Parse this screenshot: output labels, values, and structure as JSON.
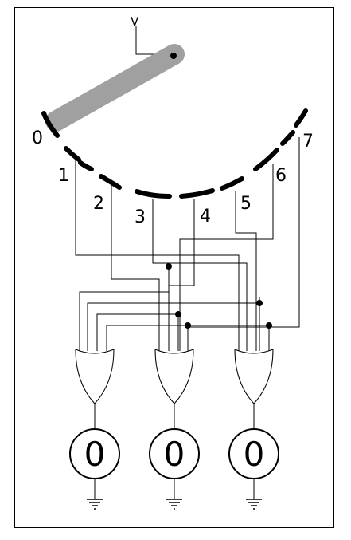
{
  "wiper_supply_label": "V",
  "positions": [
    "0",
    "1",
    "2",
    "3",
    "4",
    "5",
    "6",
    "7"
  ],
  "outputs": [
    {
      "label": "0"
    },
    {
      "label": "0"
    },
    {
      "label": "0"
    }
  ],
  "colors": {
    "wiper": "#a0a0a0",
    "contacts": "#000000",
    "wires": "#000000",
    "background": "#ffffff"
  },
  "icons": [
    "rotary-switch-wiper",
    "or-gate",
    "output-indicator",
    "ground-icon"
  ]
}
